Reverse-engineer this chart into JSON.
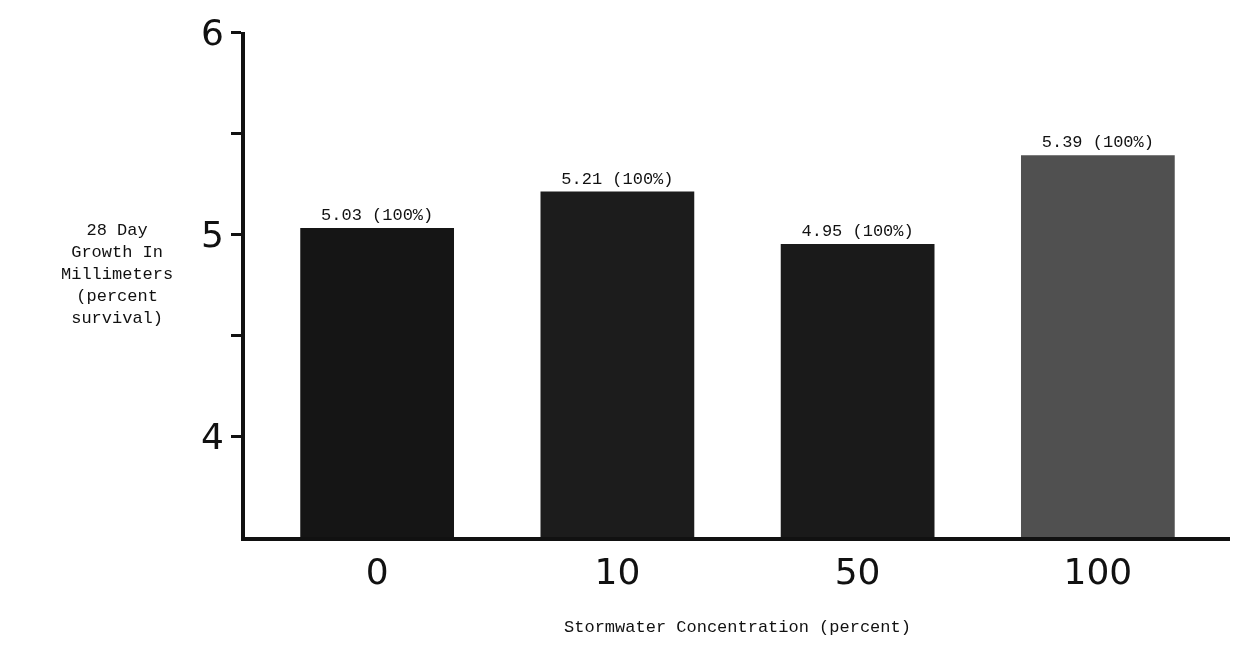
{
  "chart_data": {
    "type": "bar",
    "categories": [
      "0",
      "10",
      "50",
      "100"
    ],
    "values": [
      5.03,
      5.21,
      4.95,
      5.39
    ],
    "colors": [
      "#151515",
      "#1c1c1c",
      "#1a1a1a",
      "#505050"
    ],
    "value_labels": [
      "5.03 (100%)",
      "5.21 (100%)",
      "4.95 (100%)",
      "5.39 (100%)"
    ],
    "xlabel": "Stormwater Concentration (percent)",
    "ylabel": "28 Day\nGrowth In\nMillimeters\n(percent\nsurvival)",
    "ylim": [
      3.5,
      6
    ],
    "yticks": [
      4,
      {
        "value": 4.5,
        "label": null
      },
      5,
      {
        "value": 5.5,
        "label": null
      },
      6
    ]
  }
}
